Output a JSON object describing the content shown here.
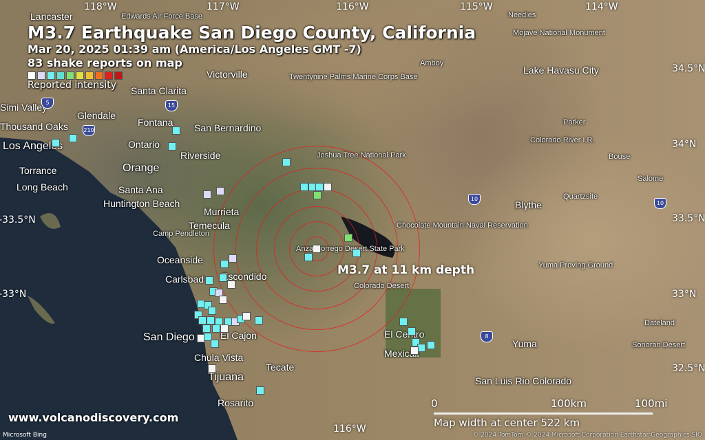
{
  "title": {
    "headline": "M3.7 Earthquake San Diego County, California",
    "datetime": "Mar 20, 2025 01:39 am (America/Los Angeles GMT -7)",
    "reports": "83 shake reports on map",
    "legend_label": "Reported intensity"
  },
  "legend_colors": [
    "#ffffff",
    "#dcdcf8",
    "#70f0f0",
    "#60e0d0",
    "#80e070",
    "#e0e040",
    "#f0c030",
    "#f07020",
    "#e02020",
    "#c01818"
  ],
  "epicenter_label": "M3.7 at 11 km depth",
  "graticule": {
    "lon": [
      "118°W",
      "117°W",
      "116°W",
      "115°W",
      "114°W"
    ],
    "lon_bottom": "116°W",
    "lat": [
      "34.5°N",
      "34°N",
      "33.5°N",
      "33°N",
      "32.5°N"
    ],
    "lat_left": [
      "-33.5°N",
      "-33°N"
    ]
  },
  "places": [
    "Edwards Air Force Base",
    "Lancaster",
    "Victorville",
    "Santa Clarita",
    "Needles",
    "Lake Havasu City",
    "Twentynine Palms Marine Corps Base",
    "Amboy",
    "Mojave National Monument",
    "Glendale",
    "Fontana",
    "San Bernardino",
    "Los Angeles",
    "Ontario",
    "Riverside",
    "Torrance",
    "Orange",
    "Long Beach",
    "Santa Ana",
    "Huntington Beach",
    "Murrieta",
    "Temecula",
    "Camp Pendleton",
    "Oceanside",
    "Carlsbad",
    "Escondido",
    "San Diego",
    "El Cajon",
    "Chula Vista",
    "Tijuana",
    "Tecate",
    "Rosarito",
    "El Centro",
    "Mexicali",
    "Yuma",
    "San Luis Rio Colorado",
    "Joshua Tree National Park",
    "Blythe",
    "Quartzsite",
    "Parker",
    "Colorado River I.R.",
    "Bouse",
    "Salome",
    "Chocolate Mountain Naval Reservation",
    "Yuma Proving Ground",
    "Colorado Desert",
    "Anza-Borrego Desert State Park",
    "Dateland",
    "Sonoran Desert",
    "Simi Valley",
    "Thousand Oaks"
  ],
  "scale": {
    "zero": "0",
    "km": "100km",
    "mi": "100mi",
    "width_text": "Map width at center 522 km"
  },
  "website": "www.volcanodiscovery.com",
  "attribution": "© 2024 TomTom © 2024 Microsoft Corporation Earthstar Geographics  SIO",
  "bing": "Microsoft Bing",
  "report_colors": {
    "white": "#f4f4f4",
    "lavender": "#dcdcf8",
    "cyan": "#70f0f0",
    "teal": "#60e0c8",
    "green": "#80e070"
  }
}
